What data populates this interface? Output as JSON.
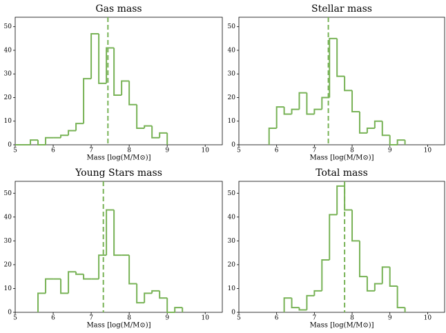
{
  "chart_data": [
    {
      "type": "histogram",
      "title": "Gas mass",
      "xlabel": "Mass [log(M/M⊙)]",
      "color": "#77b255",
      "bins": [
        5.0,
        5.2,
        5.4,
        5.6,
        5.8,
        6.0,
        6.2,
        6.4,
        6.6,
        6.8,
        7.0,
        7.2,
        7.4,
        7.6,
        7.8,
        8.0,
        8.2,
        8.4,
        8.6,
        8.8,
        9.0
      ],
      "values": [
        0,
        0,
        2,
        0,
        3,
        3,
        4,
        6,
        9,
        28,
        47,
        26,
        41,
        21,
        27,
        17,
        7,
        8,
        3,
        5
      ],
      "vline": 7.44,
      "xlim": [
        5,
        10.45
      ],
      "ylim": [
        0,
        54
      ],
      "xticks": [
        5,
        6,
        7,
        8,
        9,
        10
      ],
      "yticks": [
        0,
        10,
        20,
        30,
        40,
        50
      ]
    },
    {
      "type": "histogram",
      "title": "Stellar mass",
      "xlabel": "Mass [log(M/M⊙)]",
      "color": "#77b255",
      "bins": [
        5.8,
        6.0,
        6.2,
        6.4,
        6.6,
        6.8,
        7.0,
        7.2,
        7.4,
        7.6,
        7.8,
        8.0,
        8.2,
        8.4,
        8.6,
        8.8,
        9.0,
        9.2,
        9.4
      ],
      "values": [
        7,
        16,
        13,
        15,
        22,
        13,
        15,
        20,
        45,
        29,
        23,
        14,
        5,
        7,
        10,
        4,
        0,
        2
      ],
      "vline": 7.37,
      "xlim": [
        5,
        10.45
      ],
      "ylim": [
        0,
        54
      ],
      "xticks": [
        5,
        6,
        7,
        8,
        9,
        10
      ],
      "yticks": [
        0,
        10,
        20,
        30,
        40,
        50
      ]
    },
    {
      "type": "histogram",
      "title": "Young Stars mass",
      "xlabel": "Mass [log(M/M⊙)]",
      "color": "#77b255",
      "bins": [
        5.6,
        5.8,
        6.0,
        6.2,
        6.4,
        6.6,
        6.8,
        7.0,
        7.2,
        7.4,
        7.6,
        7.8,
        8.0,
        8.2,
        8.4,
        8.6,
        8.8,
        9.0,
        9.2,
        9.4
      ],
      "values": [
        8,
        14,
        14,
        8,
        17,
        16,
        14,
        14,
        24,
        43,
        24,
        24,
        12,
        4,
        8,
        9,
        6,
        0,
        2
      ],
      "vline": 7.32,
      "xlim": [
        5,
        10.45
      ],
      "ylim": [
        0,
        55
      ],
      "xticks": [
        5,
        6,
        7,
        8,
        9,
        10
      ],
      "yticks": [
        0,
        10,
        20,
        30,
        40,
        50
      ]
    },
    {
      "type": "histogram",
      "title": "Total mass",
      "xlabel": "Mass [log(M/M⊙)]",
      "color": "#77b255",
      "bins": [
        6.2,
        6.4,
        6.6,
        6.8,
        7.0,
        7.2,
        7.4,
        7.6,
        7.8,
        8.0,
        8.2,
        8.4,
        8.6,
        8.8,
        9.0,
        9.2,
        9.4
      ],
      "values": [
        6,
        2,
        1,
        7,
        9,
        22,
        41,
        53,
        43,
        30,
        15,
        9,
        12,
        19,
        11,
        2
      ],
      "vline": 7.8,
      "xlim": [
        5,
        10.45
      ],
      "ylim": [
        0,
        55
      ],
      "xticks": [
        5,
        6,
        7,
        8,
        9,
        10
      ],
      "yticks": [
        0,
        10,
        20,
        30,
        40,
        50
      ]
    }
  ]
}
